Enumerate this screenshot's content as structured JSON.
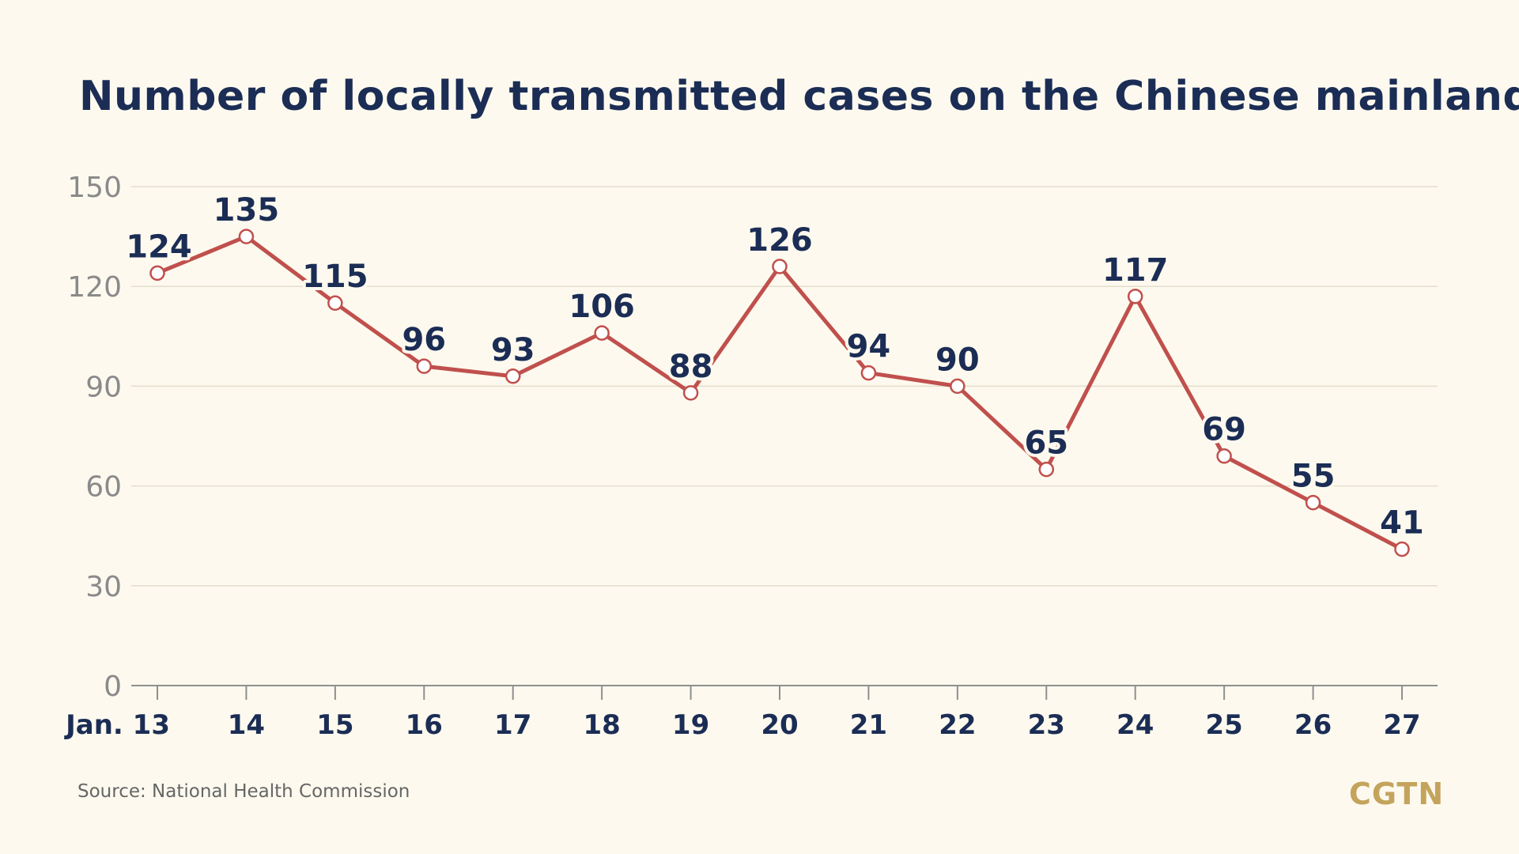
{
  "title": "Number of locally transmitted cases on the Chinese mainland",
  "source": "Source: National Health Commission",
  "logo": "CGTN",
  "colors": {
    "background": "#fdf9ee",
    "line": "#c0504d",
    "title": "#1b2d55",
    "logo": "#c4a45c"
  },
  "chart_data": {
    "type": "line",
    "title": "Number of locally transmitted cases on the Chinese mainland",
    "xlabel": "",
    "ylabel": "",
    "categories": [
      "Jan. 13",
      "14",
      "15",
      "16",
      "17",
      "18",
      "19",
      "20",
      "21",
      "22",
      "23",
      "24",
      "25",
      "26",
      "27"
    ],
    "series": [
      {
        "values": [
          124,
          135,
          115,
          96,
          93,
          106,
          88,
          126,
          94,
          90,
          65,
          117,
          69,
          55,
          41
        ]
      }
    ],
    "ylim": [
      0,
      150
    ],
    "yticks": [
      0,
      30,
      60,
      90,
      120,
      150
    ],
    "grid": true,
    "legend": "none"
  }
}
